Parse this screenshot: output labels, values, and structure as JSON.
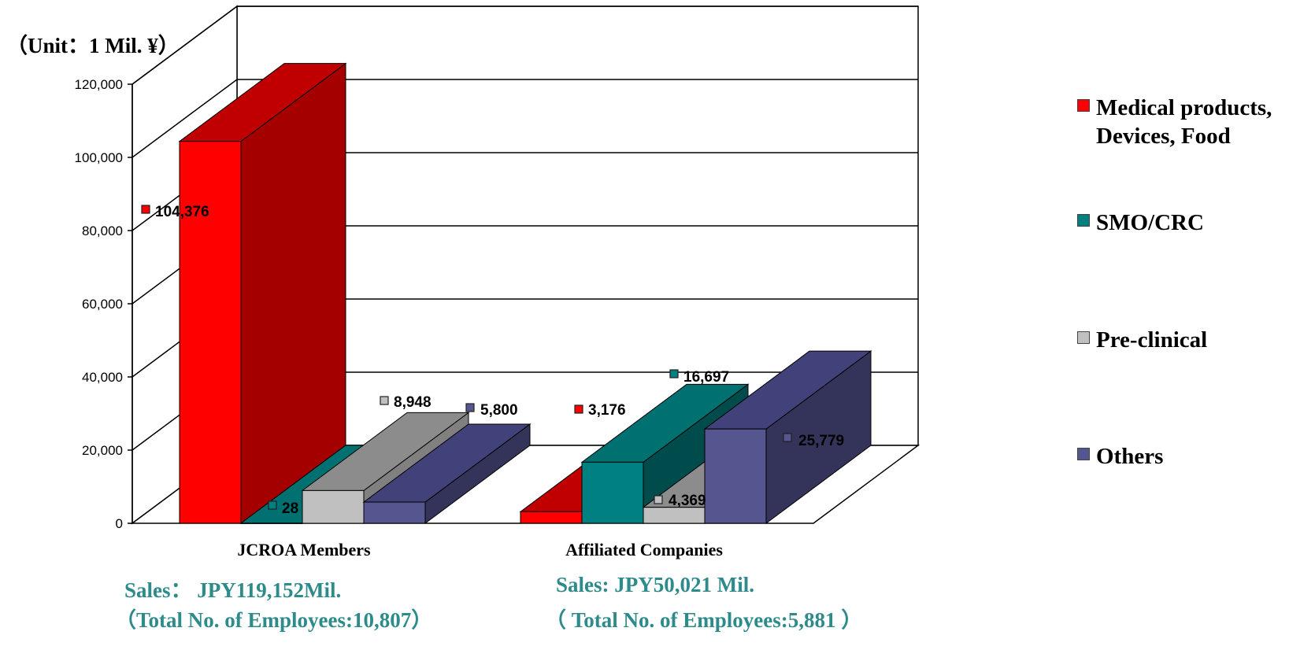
{
  "unit_label": "（Unit：1 Mil. ¥）",
  "chart_data": {
    "type": "bar",
    "subtype": "3d-clustered-column",
    "categories": [
      "JCROA Members",
      "Affiliated Companies"
    ],
    "series": [
      {
        "name": "Medical products, Devices, Food",
        "color": "#ff0000",
        "values": [
          104376,
          3176
        ],
        "labels": [
          "104,376",
          "3,176"
        ]
      },
      {
        "name": "SMO/CRC",
        "color": "#008080",
        "values": [
          28,
          16697
        ],
        "labels": [
          "28",
          "16,697"
        ]
      },
      {
        "name": "Pre-clinical",
        "color": "#c0c0c0",
        "values": [
          8948,
          4369
        ],
        "labels": [
          "8,948",
          "4,369"
        ]
      },
      {
        "name": "Others",
        "color": "#55558f",
        "values": [
          5800,
          25779
        ],
        "labels": [
          "5,800",
          "25,779"
        ]
      }
    ],
    "ylim": [
      0,
      120000
    ],
    "yticks": [
      0,
      20000,
      40000,
      60000,
      80000,
      100000,
      120000
    ],
    "ytick_labels": [
      "0",
      "20,000",
      "40,000",
      "60,000",
      "80,000",
      "100,000",
      "120,000"
    ],
    "grid": true,
    "legend_position": "right"
  },
  "legend": {
    "items": [
      {
        "label": "Medical products, Devices, Food",
        "color": "#ff0000"
      },
      {
        "label": "SMO/CRC",
        "color": "#008080"
      },
      {
        "label": "Pre-clinical",
        "color": "#c0c0c0"
      },
      {
        "label": "Others",
        "color": "#55558f"
      }
    ]
  },
  "footer": {
    "jcroa_sales": "Sales： JPY119,152Mil.",
    "jcroa_employees": "（Total No. of Employees:10,807）",
    "affiliated_sales": "Sales: JPY50,021 Mil.",
    "affiliated_employees": "（ Total No. of Employees:5,881 ）"
  }
}
